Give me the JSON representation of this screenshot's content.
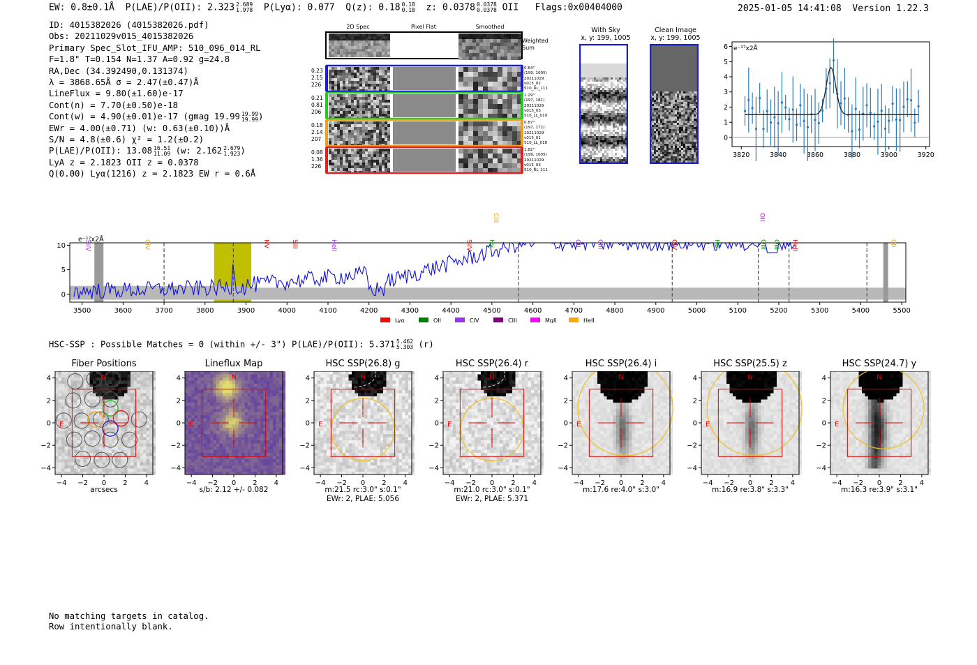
{
  "header": {
    "ew": "EW: 0.8±0.1Å",
    "plae": "P(LAE)/P(OII): 2.323",
    "plae_hi": "2.689",
    "plae_lo": "1.978",
    "plya": "P(Lyα): 0.077",
    "qz": "Q(z): 0.18",
    "qz_hi": "0.18",
    "qz_lo": "0.18",
    "z": "z: 0.0378",
    "z_hi": "0.0378",
    "z_lo": "0.0378",
    "z_line": "OII",
    "flags": "Flags:0x00404000",
    "timestamp": "2025-01-05 14:41:08",
    "version": "Version 1.22.3"
  },
  "info": {
    "id": "ID: 4015382026 (4015382026.pdf)",
    "obs": "Obs: 20211029v015_4015382026",
    "primary": "Primary Spec_Slot_IFU_AMP: 510_096_014_RL",
    "fwhm": "F=1.8\"  T=0.154  N=1.37  A=0.92  g=24.8",
    "radec": "RA,Dec (34.392490,0.131374)",
    "lambda": "λ = 3868.65Å  σ = 2.47(±0.47)Å",
    "lineflux": "LineFlux = 9.80(±1.60)e-17",
    "contn": "Cont(n) = 7.70(±0.50)e-18",
    "contw": "Cont(w) = 4.90(±0.01)e-17 (gmag 19.99",
    "contw_hi": "19.99",
    "contw_lo": "19.99",
    "contw_end": ")",
    "ewr": "EWr = 4.00(±0.71) (w: 0.63(±0.10))Å",
    "sn": "S/N = 4.8(±0.6)  χ² = 1.2(±0.2)",
    "plae": "P(LAE)/P(OII): 13.08",
    "plae_hi": "16.51",
    "plae_lo": "11.09",
    "plae_w": "(w: 2.162",
    "plae_w_hi": "2.679",
    "plae_w_lo": "1.923",
    "plae_w_end": ")",
    "lya": "LyA z = 2.1823  OII z = 0.0378",
    "q": "Q(0.00) Lyα(1216) z = 2.1823  EW r = 0.6Å"
  },
  "spec2d": {
    "col_titles": [
      "2D Spec",
      "Pixel Flat",
      "Smoothed"
    ],
    "weighted": [
      "Weighted",
      "Sum"
    ],
    "rows": [
      {
        "left": [
          "0.23",
          "2.15",
          "226"
        ],
        "right": [
          "0.64\"",
          "(199, 1005)",
          "20211029",
          "v015_02",
          "510_RL_111"
        ],
        "color": "#1f1fd0"
      },
      {
        "left": [
          "0.21",
          "0.81",
          "206"
        ],
        "right": [
          "1.29\"",
          "(197, 181)",
          "20211029",
          "v015_03",
          "510_LL_019"
        ],
        "color": "#22cc22"
      },
      {
        "left": [
          "0.18",
          "2.14",
          "207"
        ],
        "right": [
          "0.87\"",
          "(197, 172)",
          "20211029",
          "v015_01",
          "510_LL_018"
        ],
        "color": "#f0a020"
      },
      {
        "left": [
          "0.08",
          "1.36",
          "226"
        ],
        "right": [
          "1.82\"",
          "(199, 1005)",
          "20211029",
          "v015_03",
          "510_RL_111"
        ],
        "color": "#dd2222"
      }
    ]
  },
  "sky": {
    "with_sky": "With Sky",
    "with_sky_xy": "x, y: 199, 1005",
    "clean": "Clean Image",
    "clean_xy": "x, y: 199, 1005"
  },
  "line_plot": {
    "unit": "e⁻¹⁷x2Å",
    "xticks": [
      "3820",
      "3840",
      "3860",
      "3880",
      "3900",
      "3920"
    ],
    "yticks": [
      "6",
      "5",
      "4",
      "3",
      "2",
      "1",
      "0"
    ]
  },
  "full_spec": {
    "unit": "e⁻¹⁷x2Å",
    "yticks": [
      "10",
      "5",
      "0"
    ],
    "xticks": [
      "3500",
      "3600",
      "3700",
      "3800",
      "3900",
      "4000",
      "4100",
      "4200",
      "4300",
      "4400",
      "4500",
      "4600",
      "4700",
      "4800",
      "4900",
      "5000",
      "5100",
      "5200",
      "5300",
      "5400",
      "5500"
    ],
    "lines": [
      {
        "name": "SiIV",
        "color": "#9933ee"
      },
      {
        "name": "CIV",
        "color": "#f0a020"
      },
      {
        "name": "NV",
        "color": "#e00000"
      },
      {
        "name": "SiII",
        "color": "#e00000"
      },
      {
        "name": "HeII",
        "color": "#9933ee"
      },
      {
        "name": "SiIV",
        "color": "#e00000"
      },
      {
        "name": "Hγ",
        "color": "#009900"
      },
      {
        "name": "CIII",
        "color": "#f0a020"
      },
      {
        "name": "CII",
        "color": "#9933ee"
      },
      {
        "name": "CIII",
        "color": "#9933ee"
      },
      {
        "name": "CIV",
        "color": "#e00000"
      },
      {
        "name": "Hβ",
        "color": "#009900"
      },
      {
        "name": "OII",
        "color": "#ee00ee"
      },
      {
        "name": "OIII",
        "color": "#009900"
      },
      {
        "name": "OIII",
        "color": "#009900"
      },
      {
        "name": "HeII",
        "color": "#e00000"
      },
      {
        "name": "CII",
        "color": "#f0a020"
      }
    ],
    "legend": [
      {
        "name": "Lyα",
        "color": "#ff0000"
      },
      {
        "name": "OII",
        "color": "#008000"
      },
      {
        "name": "CIV",
        "color": "#9933ee"
      },
      {
        "name": "CIII",
        "color": "#800080"
      },
      {
        "name": "MgII",
        "color": "#ff00ff"
      },
      {
        "name": "HeII",
        "color": "#ffa500"
      }
    ]
  },
  "hsc": {
    "summary": "HSC-SSP : Possible Matches = 0 (within +/- 3\")  P(LAE)/P(OII): 5.371",
    "summary_hi": "5.462",
    "summary_lo": "5.303",
    "summary_end": "(r)"
  },
  "cutouts": [
    {
      "title": "Fiber Positions",
      "sub1": "arcsecs",
      "sub2": ""
    },
    {
      "title": "Lineflux Map",
      "sub1": "s/b: 2.12 +/- 0.082",
      "sub2": ""
    },
    {
      "title": "HSC SSP(26.8) g",
      "sub1": "m:21.5 rc:3.0\"  s:0.1\"",
      "sub2": "EWr: 2, PLAE: 5.056"
    },
    {
      "title": "HSC SSP(26.4) r",
      "sub1": "m:21.0 rc:3.0\"  s:0.1\"",
      "sub2": "EWr: 2, PLAE: 5.371"
    },
    {
      "title": "HSC SSP(26.4) i",
      "sub1": "m:17.6  re:4.0\"  s:3.0\"",
      "sub2": ""
    },
    {
      "title": "HSC SSP(25.5) z",
      "sub1": "m:16.9  re:3.8\"  s:3.3\"",
      "sub2": ""
    },
    {
      "title": "HSC SSP(24.7) y",
      "sub1": "m:16.3  re:3.9\"  s:3.1\"",
      "sub2": ""
    }
  ],
  "cutout_axes": {
    "xticks": [
      "−4",
      "−2",
      "0",
      "2",
      "4"
    ],
    "yticks": [
      "4",
      "2",
      "0",
      "−2",
      "−4"
    ],
    "n_label": "N",
    "e_label": "E"
  },
  "footer": {
    "line1": "No matching targets in catalog.",
    "line2": "Row intentionally blank."
  }
}
